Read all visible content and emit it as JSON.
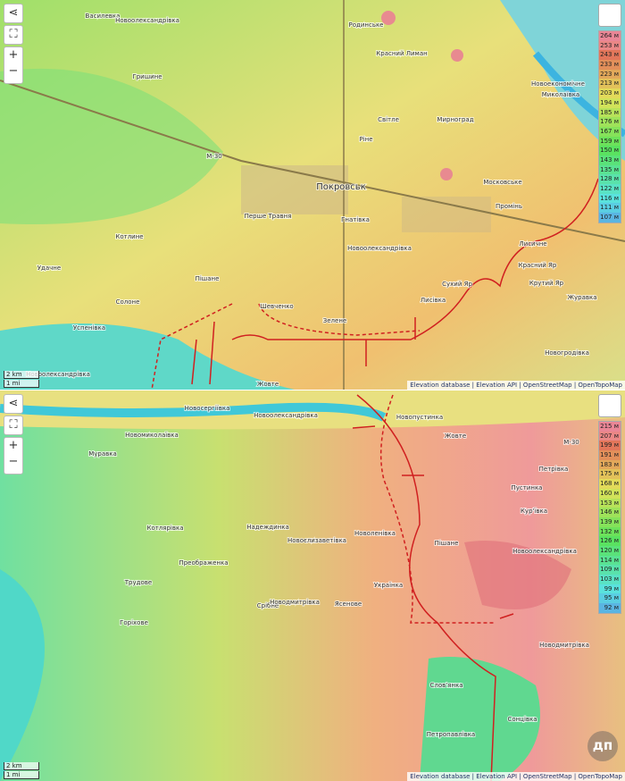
{
  "panels": [
    {
      "places": [
        "Василевка",
        "Новоолександрівка",
        "Родинське",
        "Красний Лиман",
        "Гришине",
        "Новоекономічне",
        "Миколаївка",
        "Світле",
        "Мирноград",
        "Ріне",
        "М-30",
        "Покровськ",
        "Московське",
        "Перше Травня",
        "Гнатівка",
        "Промінь",
        "Котлине",
        "Удачне",
        "Новоолександрівка",
        "Шевченко",
        "Лисичне",
        "Красний Яр",
        "Крутий Яр",
        "Журавка",
        "Сухий Яр",
        "Пішане",
        "Солоне",
        "Лисівка",
        "Новогродівка",
        "Успенівка",
        "Новоолександрівка",
        "Жовте",
        "Зелене"
      ],
      "legend": [
        "264 м",
        "253 м",
        "243 м",
        "233 м",
        "223 м",
        "213 м",
        "203 м",
        "194 м",
        "185 м",
        "176 м",
        "167 м",
        "159 м",
        "150 м",
        "143 м",
        "135 м",
        "128 м",
        "122 м",
        "116 м",
        "111 м",
        "107 м"
      ],
      "scale": [
        "2 km",
        "1 mi"
      ],
      "attribution": [
        "Elevation database",
        "Elevation API",
        "OpenStreetMap",
        "OpenTopoMap"
      ]
    },
    {
      "places": [
        "Новосергіївка",
        "Новоолександрівка",
        "Новопустинка",
        "Новомиколаївка",
        "Муравка",
        "Жовте",
        "М-30",
        "Петрівка",
        "Пустинка",
        "Кур'ївка",
        "Котлярівка",
        "Надеждинка",
        "Новоєлизаветівка",
        "Новоленівка",
        "Пішане",
        "Новоолександрівка",
        "Преображенка",
        "Трудове",
        "Українка",
        "Горіхове",
        "Срібне",
        "Новодмитрівка",
        "Ясенове",
        "Новодмитрівка",
        "Слов'янка",
        "Сонцівка",
        "Петропавлівка"
      ],
      "legend": [
        "215 м",
        "207 м",
        "199 м",
        "191 м",
        "183 м",
        "175 м",
        "168 м",
        "160 м",
        "153 м",
        "146 м",
        "139 м",
        "132 м",
        "126 м",
        "120 м",
        "114 м",
        "109 м",
        "103 м",
        "99 м",
        "95 м",
        "92 м"
      ],
      "scale": [
        "2 km",
        "1 mi"
      ],
      "attribution": [
        "Elevation database",
        "Elevation API",
        "OpenStreetMap",
        "OpenTopoMap"
      ],
      "logo": "дп"
    }
  ]
}
